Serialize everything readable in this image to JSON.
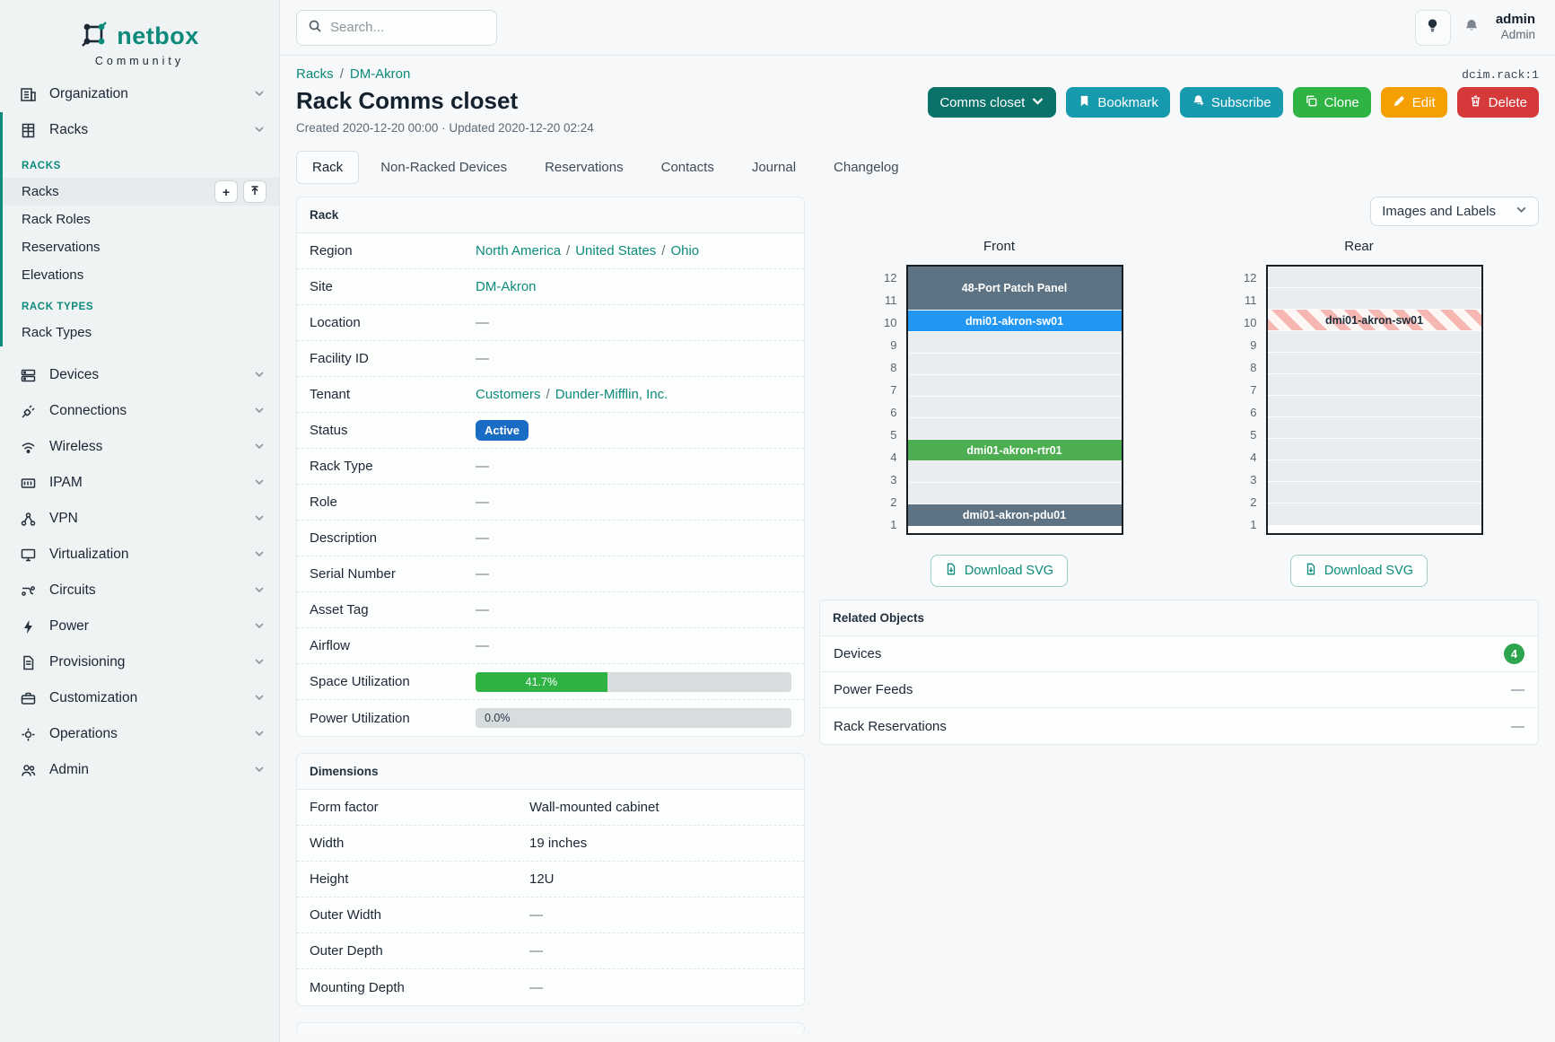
{
  "brand": {
    "logo_text": "netbox",
    "logo_subtitle": "Community"
  },
  "topbar": {
    "search_placeholder": "Search...",
    "user_name": "admin",
    "user_role": "Admin"
  },
  "object_id": "dcim.rack:1",
  "breadcrumb": [
    "Racks",
    "DM-Akron"
  ],
  "breadcrumb_sep": "/",
  "page": {
    "title": "Rack Comms closet",
    "meta": "Created 2020-12-20 00:00 · Updated 2020-12-20 02:24"
  },
  "actions": {
    "name_dropdown": "Comms closet",
    "bookmark": "Bookmark",
    "subscribe": "Subscribe",
    "clone": "Clone",
    "edit": "Edit",
    "delete": "Delete"
  },
  "tabs": [
    "Rack",
    "Non-Racked Devices",
    "Reservations",
    "Contacts",
    "Journal",
    "Changelog"
  ],
  "sidebar": {
    "top_items": [
      "Organization",
      "Racks"
    ],
    "racks_section_header": "RACKS",
    "racks_items": [
      "Racks",
      "Rack Roles",
      "Reservations",
      "Elevations"
    ],
    "rack_types_section_header": "RACK TYPES",
    "rack_types_items": [
      "Rack Types"
    ],
    "add_glyph": "+",
    "bottom_items": [
      "Devices",
      "Connections",
      "Wireless",
      "IPAM",
      "VPN",
      "Virtualization",
      "Circuits",
      "Power",
      "Provisioning",
      "Customization",
      "Operations",
      "Admin"
    ]
  },
  "rack_panel": {
    "title": "Rack",
    "region": {
      "label": "Region",
      "links": [
        "North America",
        "United States",
        "Ohio"
      ]
    },
    "site": {
      "label": "Site",
      "link": "DM-Akron"
    },
    "location": {
      "label": "Location",
      "value": "—"
    },
    "facility": {
      "label": "Facility ID",
      "value": "—"
    },
    "tenant": {
      "label": "Tenant",
      "links": [
        "Customers",
        "Dunder-Mifflin, Inc."
      ]
    },
    "status": {
      "label": "Status",
      "badge": "Active"
    },
    "rack_type": {
      "label": "Rack Type",
      "value": "—"
    },
    "role": {
      "label": "Role",
      "value": "—"
    },
    "description": {
      "label": "Description",
      "value": "—"
    },
    "serial": {
      "label": "Serial Number",
      "value": "—"
    },
    "asset_tag": {
      "label": "Asset Tag",
      "value": "—"
    },
    "airflow": {
      "label": "Airflow",
      "value": "—"
    },
    "space_util": {
      "label": "Space Utilization",
      "percent": "41.7%",
      "fraction": 0.417
    },
    "power_util": {
      "label": "Power Utilization",
      "percent": "0.0%",
      "fraction": 0.0
    }
  },
  "dimensions_panel": {
    "title": "Dimensions",
    "form_factor": {
      "label": "Form factor",
      "value": "Wall-mounted cabinet"
    },
    "width": {
      "label": "Width",
      "value": "19 inches"
    },
    "height": {
      "label": "Height",
      "value": "12U"
    },
    "outer_width": {
      "label": "Outer Width",
      "value": "—"
    },
    "outer_depth": {
      "label": "Outer Depth",
      "value": "—"
    },
    "mounting_depth": {
      "label": "Mounting Depth",
      "value": "—"
    }
  },
  "elevations": {
    "view_toggle_label": "Images and Labels",
    "download_label": "Download SVG",
    "front": {
      "title": "Front",
      "slots": [
        {
          "top_unit": 12,
          "span": 2,
          "label": "48-Port Patch Panel",
          "style": "slate"
        },
        {
          "top_unit": 10,
          "span": 1,
          "label": "dmi01-akron-sw01",
          "style": "blue"
        },
        {
          "top_unit": 9,
          "span": 1,
          "style": "empty"
        },
        {
          "top_unit": 8,
          "span": 1,
          "style": "empty"
        },
        {
          "top_unit": 7,
          "span": 1,
          "style": "empty"
        },
        {
          "top_unit": 6,
          "span": 1,
          "style": "empty"
        },
        {
          "top_unit": 5,
          "span": 1,
          "style": "empty"
        },
        {
          "top_unit": 4,
          "span": 1,
          "label": "dmi01-akron-rtr01",
          "style": "green"
        },
        {
          "top_unit": 3,
          "span": 1,
          "style": "empty"
        },
        {
          "top_unit": 2,
          "span": 1,
          "style": "empty"
        },
        {
          "top_unit": 1,
          "span": 1,
          "label": "dmi01-akron-pdu01",
          "style": "slate"
        }
      ]
    },
    "rear": {
      "title": "Rear",
      "slots": [
        {
          "top_unit": 12,
          "span": 1,
          "style": "empty"
        },
        {
          "top_unit": 11,
          "span": 1,
          "style": "empty"
        },
        {
          "top_unit": 10,
          "span": 1,
          "label": "dmi01-akron-sw01",
          "style": "hatched"
        },
        {
          "top_unit": 9,
          "span": 1,
          "style": "empty"
        },
        {
          "top_unit": 8,
          "span": 1,
          "style": "empty"
        },
        {
          "top_unit": 7,
          "span": 1,
          "style": "empty"
        },
        {
          "top_unit": 6,
          "span": 1,
          "style": "empty"
        },
        {
          "top_unit": 5,
          "span": 1,
          "style": "empty"
        },
        {
          "top_unit": 4,
          "span": 1,
          "style": "empty"
        },
        {
          "top_unit": 3,
          "span": 1,
          "style": "empty"
        },
        {
          "top_unit": 2,
          "span": 1,
          "style": "empty"
        },
        {
          "top_unit": 1,
          "span": 1,
          "style": "empty"
        }
      ]
    }
  },
  "related": {
    "title": "Related Objects",
    "rows": [
      {
        "label": "Devices",
        "badge": "4"
      },
      {
        "label": "Power Feeds",
        "value": "—"
      },
      {
        "label": "Rack Reservations",
        "value": "—"
      }
    ]
  },
  "colors": {
    "accent_teal": "#0c8a7b",
    "button_primary": "#0a7268",
    "button_cyan": "#1799ae",
    "button_green": "#2fb344",
    "button_amber": "#f59f00",
    "button_red": "#d63939",
    "badge_blue": "#1a6bc4",
    "progress_green": "#2fb344",
    "count_badge_green": "#2da44e",
    "rack_slate": "#5d7282",
    "rack_blue": "#2196f3",
    "rack_green": "#4cae50",
    "rack_empty": "#e9edf0",
    "rear_hatch_pink": "#f6b7b2"
  }
}
